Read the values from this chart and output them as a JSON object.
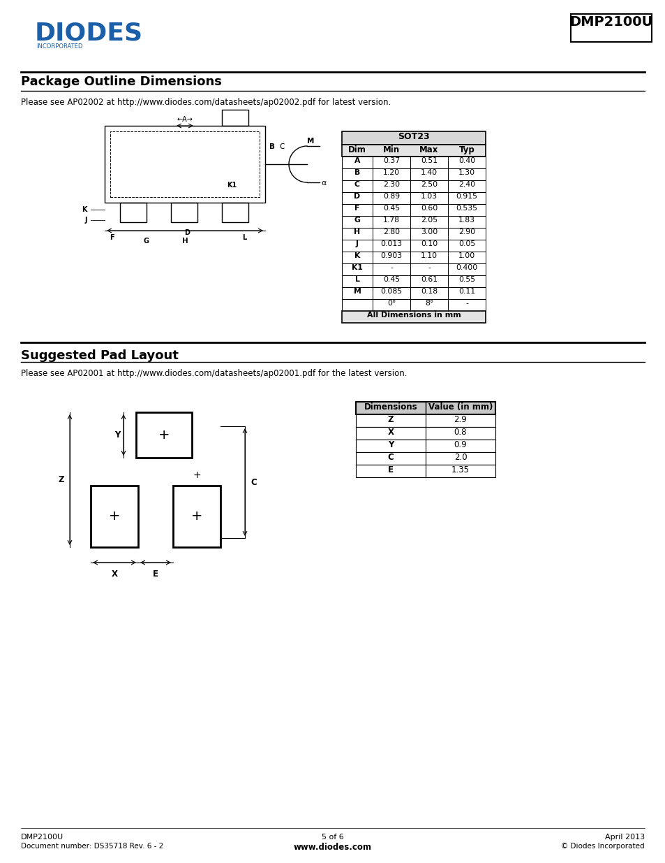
{
  "page_title": "DMP2100U",
  "logo_text": "DIODES",
  "logo_sub": "INCORPORATED",
  "logo_color": "#1a5fa8",
  "section1_title": "Package Outline Dimensions",
  "section1_url": "Please see AP02002 at http://www.diodes.com/datasheets/ap02002.pdf for latest version.",
  "sot23_table_title": "SOT23",
  "sot23_headers": [
    "Dim",
    "Min",
    "Max",
    "Typ"
  ],
  "sot23_rows": [
    [
      "A",
      "0.37",
      "0.51",
      "0.40"
    ],
    [
      "B",
      "1.20",
      "1.40",
      "1.30"
    ],
    [
      "C",
      "2.30",
      "2.50",
      "2.40"
    ],
    [
      "D",
      "0.89",
      "1.03",
      "0.915"
    ],
    [
      "F",
      "0.45",
      "0.60",
      "0.535"
    ],
    [
      "G",
      "1.78",
      "2.05",
      "1.83"
    ],
    [
      "H",
      "2.80",
      "3.00",
      "2.90"
    ],
    [
      "J",
      "0.013",
      "0.10",
      "0.05"
    ],
    [
      "K",
      "0.903",
      "1.10",
      "1.00"
    ],
    [
      "K1",
      "-",
      "-",
      "0.400"
    ],
    [
      "L",
      "0.45",
      "0.61",
      "0.55"
    ],
    [
      "M",
      "0.085",
      "0.18",
      "0.11"
    ],
    [
      "",
      "0°",
      "8°",
      "-"
    ]
  ],
  "sot23_footer": "All Dimensions in mm",
  "section2_title": "Suggested Pad Layout",
  "section2_url": "Please see AP02001 at http://www.diodes.com/datasheets/ap02001.pdf for the latest version.",
  "pad_table_headers": [
    "Dimensions",
    "Value (in mm)"
  ],
  "pad_table_rows": [
    [
      "Z",
      "2.9"
    ],
    [
      "X",
      "0.8"
    ],
    [
      "Y",
      "0.9"
    ],
    [
      "C",
      "2.0"
    ],
    [
      "E",
      "1.35"
    ]
  ],
  "footer_left1": "DMP2100U",
  "footer_left2": "Document number: DS35718 Rev. 6 - 2",
  "footer_center": "5 of 6",
  "footer_center2": "www.diodes.com",
  "footer_right1": "April 2013",
  "footer_right2": "© Diodes Incorporated",
  "bg_color": "#ffffff",
  "text_color": "#000000"
}
